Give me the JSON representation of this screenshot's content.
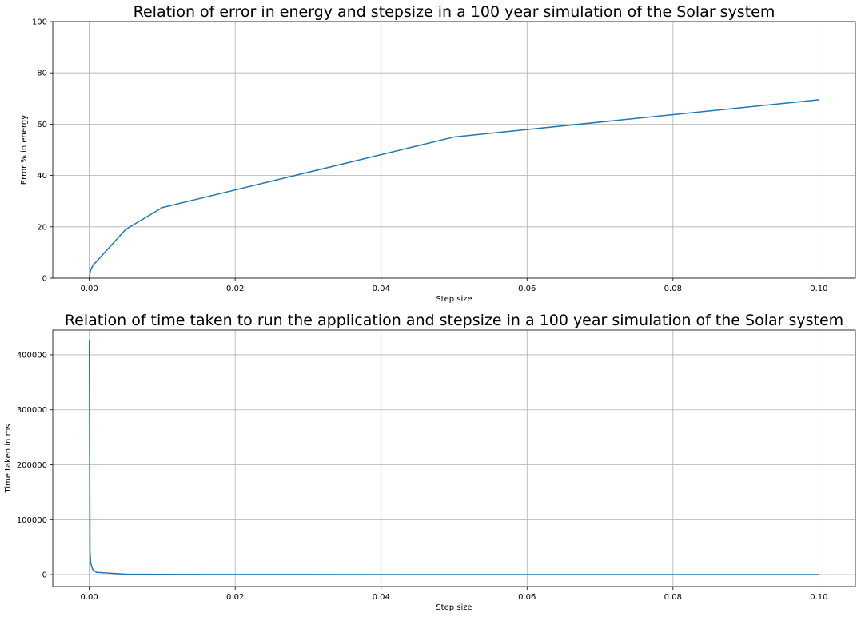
{
  "chart_data": [
    {
      "type": "line",
      "title": "Relation of error in energy and stepsize in a 100 year simulation of the Solar system",
      "xlabel": "Step size",
      "ylabel": "Error % in energy",
      "xlim": [
        -0.005,
        0.105
      ],
      "ylim": [
        0,
        100
      ],
      "xticks": [
        0.0,
        0.02,
        0.04,
        0.06,
        0.08,
        0.1
      ],
      "xtick_labels": [
        "0.00",
        "0.02",
        "0.04",
        "0.06",
        "0.08",
        "0.10"
      ],
      "yticks": [
        0,
        20,
        40,
        60,
        80,
        100
      ],
      "ytick_labels": [
        "0",
        "20",
        "40",
        "60",
        "80",
        "100"
      ],
      "grid": true,
      "color": "#1f77b4",
      "series": [
        {
          "x": [
            1e-05,
            0.0001,
            0.0002,
            0.0005,
            0.001,
            0.005,
            0.01,
            0.05,
            0.1
          ],
          "y": [
            0.3,
            2.0,
            3.2,
            5.0,
            6.5,
            19.0,
            27.5,
            55.0,
            69.5
          ]
        }
      ]
    },
    {
      "type": "line",
      "title": "Relation of time taken to run the application and stepsize in a 100 year simulation of the Solar system",
      "xlabel": "Step size",
      "ylabel": "Time taken in ms",
      "xlim": [
        -0.005,
        0.105
      ],
      "ylim": [
        -21700,
        445000
      ],
      "xticks": [
        0.0,
        0.02,
        0.04,
        0.06,
        0.08,
        0.1
      ],
      "xtick_labels": [
        "0.00",
        "0.02",
        "0.04",
        "0.06",
        "0.08",
        "0.10"
      ],
      "yticks": [
        0,
        100000,
        200000,
        300000,
        400000
      ],
      "ytick_labels": [
        "0",
        "100000",
        "200000",
        "300000",
        "400000"
      ],
      "grid": true,
      "color": "#1f77b4",
      "series": [
        {
          "x": [
            1e-05,
            0.0001,
            0.0002,
            0.0005,
            0.001,
            0.005,
            0.01,
            0.05,
            0.1
          ],
          "y": [
            425000,
            42000,
            21000,
            8500,
            4200,
            850,
            420,
            85,
            42
          ]
        }
      ]
    }
  ]
}
